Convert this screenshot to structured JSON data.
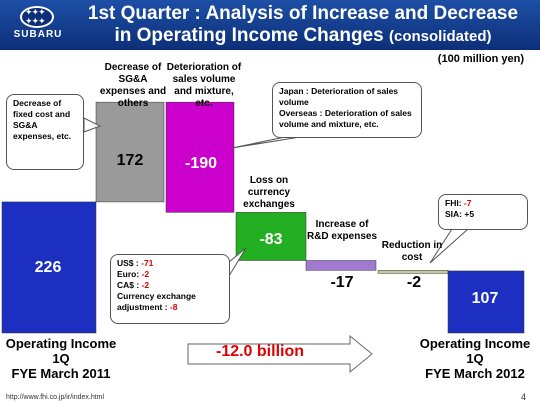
{
  "header": {
    "brand": "SUBARU",
    "title_line1": "1st Quarter : Analysis of Increase and Decrease",
    "title_line2": "in Operating Income Changes",
    "title_suffix": "(consolidated)"
  },
  "unit": "(100 million yen)",
  "chart_data": {
    "type": "bar",
    "subtype": "waterfall",
    "categories": [
      "Operating Income 1Q FYE March 2011",
      "Decrease of SG&A expenses and others",
      "Deterioration of sales volume and mixture, etc.",
      "Loss on currency exchanges",
      "Increase of R&D expenses",
      "Reduction in cost",
      "Operating Income 1Q FYE March 2012"
    ],
    "values": [
      226,
      172,
      -190,
      -83,
      -17,
      -2,
      107
    ],
    "value_labels": [
      "226",
      "172",
      "-190",
      "-83",
      "-17",
      "-2",
      "107"
    ],
    "colors": [
      "#1c2fc0",
      "#9a9a9a",
      "#cc00cc",
      "#22b022",
      "#a07ad0",
      "#c8c8a0",
      "#1c2fc0"
    ],
    "total_change": "-12.0 billion"
  },
  "labels": {
    "sga": "Decrease of SG&A expenses and others",
    "sales": "Deterioration of sales volume and mixture, etc.",
    "currency": "Loss on currency exchanges",
    "rnd": "Increase of R&D expenses",
    "cost": "Reduction in cost"
  },
  "callouts": {
    "sga": "Decrease of fixed cost and SG&A expenses, etc.",
    "sales_japan": "Japan : Deterioration of sales volume",
    "sales_overseas": "Overseas : Deterioration of sales volume and mixture, etc.",
    "cost_fhi": "FHI:",
    "cost_fhi_val": "-7",
    "cost_sia": "SIA: +5",
    "fx_usd": "US$ :",
    "fx_usd_val": "-71",
    "fx_eur": "Euro:",
    "fx_eur_val": "-2",
    "fx_cad": "CA$ :",
    "fx_cad_val": "-2",
    "fx_adj": "Currency exchange adjustment :",
    "fx_adj_val": "-8"
  },
  "footer": {
    "left_l1": "Operating Income",
    "left_l2": "1Q",
    "left_l3": "FYE March 2011",
    "right_l1": "Operating Income",
    "right_l2": "1Q",
    "right_l3": "FYE March 2012",
    "url": "http://www.fhi.co.jp/ir/index.html",
    "page": "4"
  }
}
